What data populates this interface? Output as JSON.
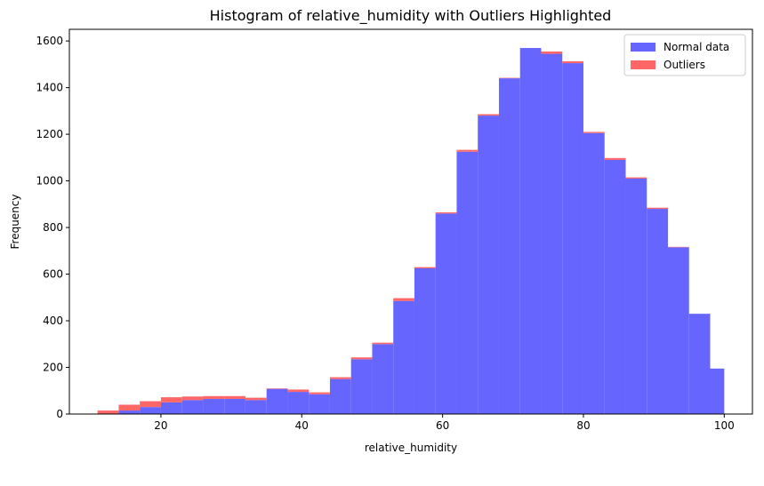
{
  "chart_data": {
    "type": "bar",
    "stacked": true,
    "title": "Histogram of relative_humidity with Outliers Highlighted",
    "xlabel": "relative_humidity",
    "ylabel": "Frequency",
    "xlim": [
      7,
      104
    ],
    "ylim": [
      0,
      1650
    ],
    "xticks": [
      20,
      40,
      60,
      80,
      100
    ],
    "yticks": [
      0,
      200,
      400,
      600,
      800,
      1000,
      1200,
      1400,
      1600
    ],
    "legend_position": "top-right",
    "bin_edges": [
      11,
      14,
      17,
      20,
      23,
      26,
      29,
      32,
      35,
      38,
      41,
      44,
      47,
      50,
      53,
      56,
      59,
      62,
      65,
      68,
      71,
      74,
      77,
      80,
      83,
      86,
      89,
      92,
      95,
      98,
      100
    ],
    "series": [
      {
        "name": "Normal data",
        "color": "#6666ff",
        "values": [
          0,
          15,
          30,
          50,
          60,
          65,
          65,
          60,
          108,
          95,
          85,
          150,
          235,
          300,
          485,
          625,
          860,
          1125,
          1280,
          1440,
          1570,
          1545,
          1505,
          1205,
          1090,
          1010,
          880,
          715,
          430,
          195
        ]
      },
      {
        "name": "Outliers",
        "color": "#ff6666",
        "values": [
          15,
          25,
          25,
          22,
          15,
          12,
          12,
          10,
          2,
          10,
          8,
          8,
          8,
          6,
          12,
          5,
          5,
          8,
          6,
          2,
          0,
          10,
          8,
          5,
          8,
          5,
          5,
          2,
          0,
          0
        ]
      }
    ]
  }
}
